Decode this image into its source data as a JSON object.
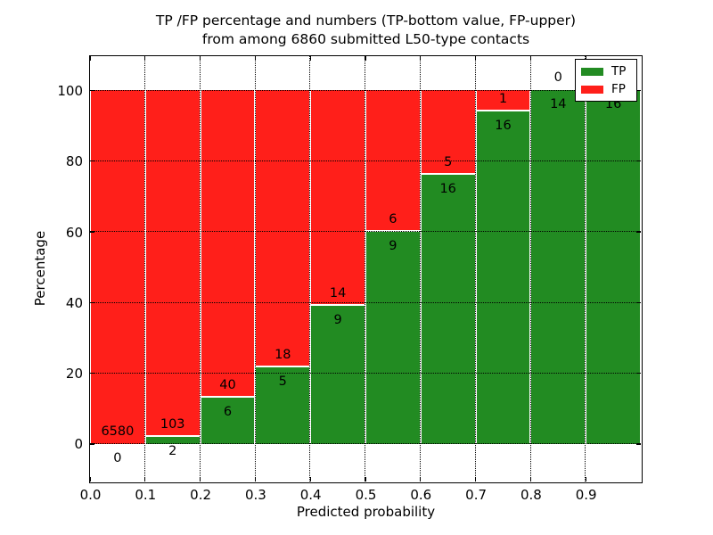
{
  "chart_data": {
    "type": "bar",
    "stacking": "percentage",
    "title_line1": "TP /FP percentage and numbers (TP-bottom value, FP-upper)",
    "title_line2": "from among 6860 submitted L50-type contacts",
    "xlabel": "Predicted probability",
    "ylabel": "Percentage",
    "x_tick_labels": [
      "0.0",
      "0.1",
      "0.2",
      "0.3",
      "0.4",
      "0.5",
      "0.6",
      "0.7",
      "0.8",
      "0.9"
    ],
    "y_tick_values": [
      0,
      20,
      40,
      60,
      80,
      100
    ],
    "xlim": [
      0.0,
      1.0
    ],
    "ylim": [
      -10.6,
      109.7
    ],
    "grid": "dotted-black",
    "total_contacts": 6860,
    "colors": {
      "tp": "#228b22",
      "fp": "#ff1f1a"
    },
    "legend": {
      "position": "upper-right",
      "entries": [
        {
          "label": "TP",
          "color": "#228b22"
        },
        {
          "label": "FP",
          "color": "#ff1f1a"
        }
      ]
    },
    "bins": [
      {
        "x0": 0.0,
        "x1": 0.1,
        "tp": 0,
        "fp": 6580
      },
      {
        "x0": 0.1,
        "x1": 0.2,
        "tp": 2,
        "fp": 103
      },
      {
        "x0": 0.2,
        "x1": 0.3,
        "tp": 6,
        "fp": 40
      },
      {
        "x0": 0.3,
        "x1": 0.4,
        "tp": 5,
        "fp": 18
      },
      {
        "x0": 0.4,
        "x1": 0.5,
        "tp": 9,
        "fp": 14
      },
      {
        "x0": 0.5,
        "x1": 0.6,
        "tp": 9,
        "fp": 6
      },
      {
        "x0": 0.6,
        "x1": 0.7,
        "tp": 16,
        "fp": 5
      },
      {
        "x0": 0.7,
        "x1": 0.8,
        "tp": 16,
        "fp": 1
      },
      {
        "x0": 0.8,
        "x1": 0.9,
        "tp": 14,
        "fp": 0
      },
      {
        "x0": 0.9,
        "x1": 1.0,
        "tp": 16,
        "fp": 0
      }
    ]
  }
}
